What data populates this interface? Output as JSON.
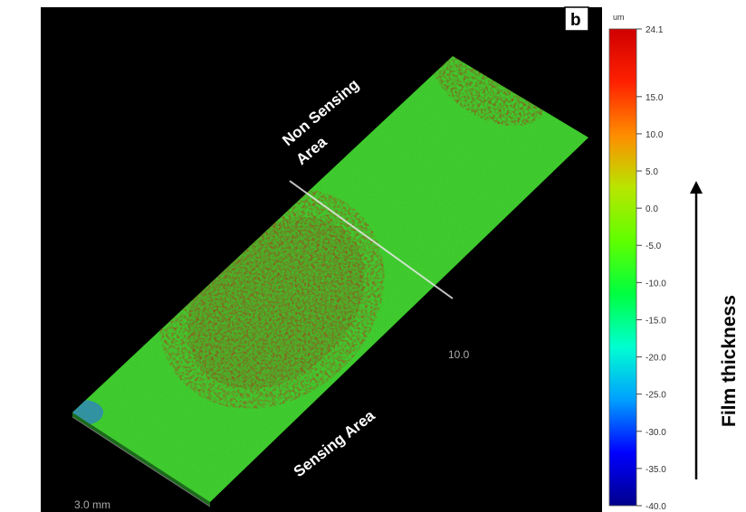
{
  "figure": {
    "panel_letter": "b",
    "non_sensing_label_line1": "Non Sensing",
    "non_sensing_label_line2": "Area",
    "sensing_label": "Sensing Area",
    "axis_label_length": "10.0",
    "axis_label_width": "3.0 mm",
    "side_label": "Film thickness"
  },
  "colorbar": {
    "unit": "um",
    "max_label": "24.1",
    "ticks": [
      "15.0",
      "10.0",
      "5.0",
      "0.0",
      "-5.0",
      "-10.0",
      "-15.0",
      "-20.0",
      "-25.0",
      "-30.0",
      "-35.0",
      "-40.0"
    ],
    "tick_values": [
      15,
      10,
      5,
      0,
      -5,
      -10,
      -15,
      -20,
      -25,
      -30,
      -35,
      -40
    ],
    "min_value": -40,
    "max_value": 24.1,
    "colors": [
      "#00008c",
      "#0000ff",
      "#00a0ff",
      "#00ffd0",
      "#00ff40",
      "#60ff00",
      "#b8e600",
      "#ff8c00",
      "#ff2000",
      "#d00000"
    ]
  },
  "colors": {
    "background": "#000000",
    "film_green": "#3fd12e",
    "film_red": "#c4321a",
    "divider": "#e8e8e8"
  }
}
